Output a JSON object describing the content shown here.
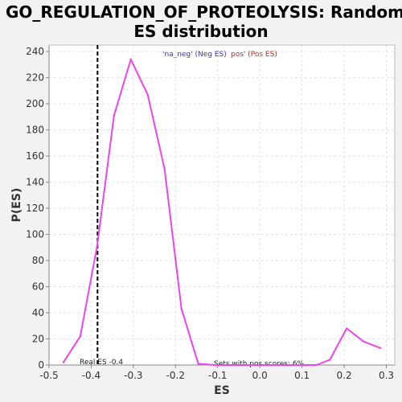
{
  "chart_data": {
    "type": "line",
    "title_line1": "GO_REGULATION_OF_PROTEOLYSIS: Random",
    "title_line2": "ES distribution",
    "xlabel": "ES",
    "ylabel": "P(ES)",
    "xlim": [
      -0.5,
      0.32
    ],
    "ylim": [
      0,
      245
    ],
    "xticks": [
      -0.5,
      -0.4,
      -0.3,
      -0.2,
      -0.1,
      0.0,
      0.1,
      0.2,
      0.3
    ],
    "xtick_labels": [
      "-0.5",
      "-0.4",
      "-0.3",
      "-0.2",
      "-0.1",
      "0.0",
      "0.1",
      "0.2",
      "0.3"
    ],
    "yticks": [
      0,
      20,
      40,
      60,
      80,
      100,
      120,
      140,
      160,
      180,
      200,
      220,
      240
    ],
    "ytick_labels": [
      "0",
      "20",
      "40",
      "60",
      "80",
      "100",
      "120",
      "140",
      "160",
      "180",
      "200",
      "220",
      "240"
    ],
    "grid": true,
    "legend": [
      {
        "label": "'na_neg' (Neg ES)",
        "color": "#3333cc"
      },
      {
        "label": "pos' (Pos ES)",
        "color": "#cc2222"
      }
    ],
    "series": [
      {
        "color": "#ee44ee",
        "x": [
          -0.466,
          -0.426,
          -0.386,
          -0.346,
          -0.306,
          -0.266,
          -0.226,
          -0.186,
          -0.146,
          -0.106,
          0.134,
          0.166,
          0.206,
          0.246,
          0.286
        ],
        "y": [
          2,
          22,
          91,
          191,
          234,
          207,
          150,
          43,
          1,
          0,
          0,
          4,
          28,
          18,
          13
        ]
      }
    ],
    "real_es": -0.385,
    "real_es_label": "Real ES -0.4",
    "annotation": "Sets with pos scores: 6%"
  },
  "colors": {
    "background": "#f2f2f2",
    "plot_background": "#ffffff",
    "grid": "#e3e3e3",
    "line": "#ee44ee",
    "real_es_line": "#000000"
  }
}
